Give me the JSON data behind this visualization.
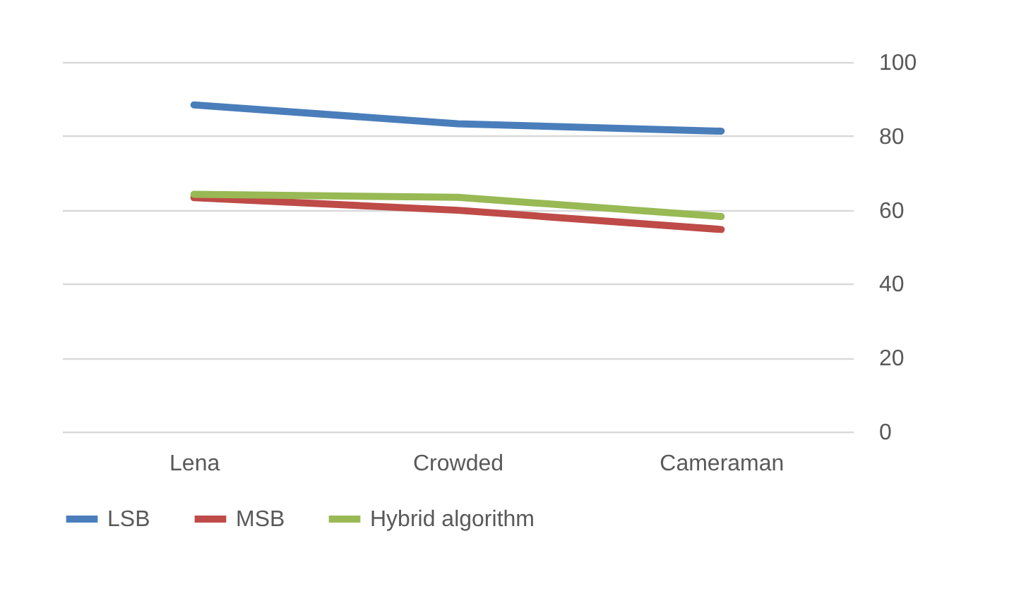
{
  "chart_data": {
    "type": "line",
    "categories": [
      "Lena",
      "Crowded",
      "Cameraman"
    ],
    "series": [
      {
        "name": "LSB",
        "color": "#4a7ebb",
        "values": [
          88.4,
          83.3,
          81.3
        ]
      },
      {
        "name": "MSB",
        "color": "#be4b48",
        "values": [
          63.3,
          59.9,
          54.7
        ]
      },
      {
        "name": "Hybrid algorithm",
        "color": "#98b954",
        "values": [
          64.2,
          63.4,
          58.2
        ]
      }
    ],
    "ylim": [
      0,
      100
    ],
    "yticks": [
      0,
      20,
      40,
      60,
      80,
      100
    ],
    "grid": "y",
    "legend": "bottom",
    "marker": "none",
    "line_style": "solid"
  }
}
